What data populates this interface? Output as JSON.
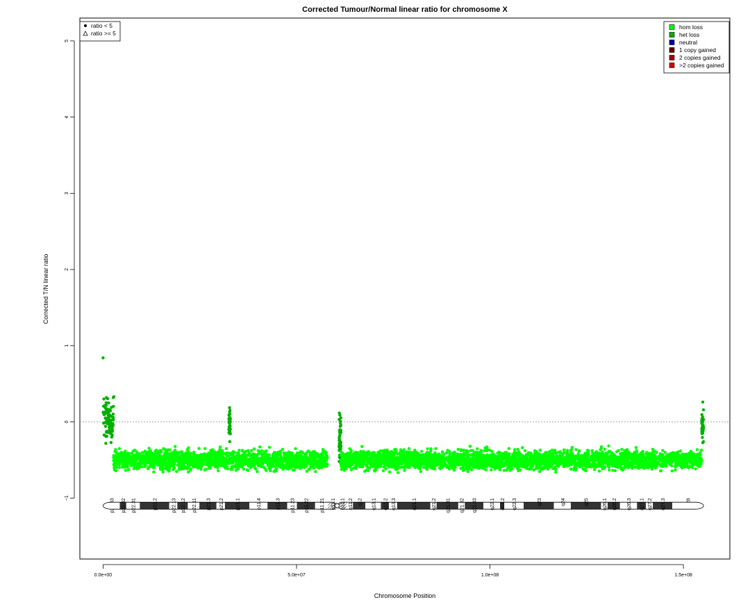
{
  "chart_data": {
    "type": "scatter",
    "title": "Corrected Tumour/Normal linear ratio for chromosome  X",
    "xlabel": "Chromosome Position",
    "ylabel": "Corrected T/N linear ratio",
    "xlim": [
      -6000000,
      162000000
    ],
    "ylim": [
      -1.8,
      5.3
    ],
    "x_ticks": [
      0,
      50000000,
      100000000,
      150000000
    ],
    "x_tick_labels": [
      "0.0e+00",
      "5.0e+07",
      "1.0e+08",
      "1.5e+08"
    ],
    "y_ticks": [
      -1,
      0,
      1,
      2,
      3,
      4,
      5
    ],
    "y_tick_labels": [
      "−1",
      "0",
      "1",
      "2",
      "3",
      "4",
      "5"
    ],
    "reference_line": 0,
    "point_legend": [
      {
        "label": "ratio < 5",
        "symbol": "filled-circle"
      },
      {
        "label": "ratio >= 5",
        "symbol": "open-triangle"
      }
    ],
    "legend": [
      {
        "label": "hom loss",
        "color": "#00ff00"
      },
      {
        "label": "het loss",
        "color": "#00b000"
      },
      {
        "label": "neutral",
        "color": "#0000aa"
      },
      {
        "label": "1 copy gained",
        "color": "#660000"
      },
      {
        "label": "2 copies gained",
        "color": "#a00000"
      },
      {
        "label": ">2 copies gained",
        "color": "#e00000"
      }
    ],
    "series": [
      {
        "name": "het loss",
        "color": "#00b000",
        "segments": [
          {
            "x_start": 0,
            "x_end": 2700000,
            "y_mean": 0.02,
            "y_spread": 0.13
          },
          {
            "x_start": 32500000,
            "x_end": 32900000,
            "y_mean": -0.05,
            "y_spread": 0.1
          },
          {
            "x_start": 61000000,
            "x_end": 61500000,
            "y_mean": -0.2,
            "y_spread": 0.15
          },
          {
            "x_start": 154700000,
            "x_end": 155200000,
            "y_mean": -0.05,
            "y_spread": 0.1
          }
        ],
        "outliers": [
          [
            0,
            0.84
          ],
          [
            200000,
            0.3
          ],
          [
            2800000,
            0.33
          ],
          [
            32800000,
            0.15
          ],
          [
            61200000,
            0.09
          ],
          [
            155000000,
            0.26
          ]
        ]
      },
      {
        "name": "hom loss",
        "color": "#00ff00",
        "segments": [
          {
            "x_start": 2700000,
            "x_end": 58000000,
            "y_mean": -0.5,
            "y_spread": 0.06
          },
          {
            "x_start": 61500000,
            "x_end": 154700000,
            "y_mean": -0.5,
            "y_spread": 0.06
          }
        ]
      }
    ],
    "ideogram": {
      "y": -1.1,
      "centromere": 60500000,
      "length": 155200000,
      "bands": [
        {
          "name": "p22.33",
          "start": 0,
          "end": 4300000,
          "stain": "gneg"
        },
        {
          "name": "p22.32",
          "start": 4300000,
          "end": 6000000,
          "stain": "gpos"
        },
        {
          "name": "p22.31",
          "start": 6000000,
          "end": 9500000,
          "stain": "gneg"
        },
        {
          "name": "p22.2",
          "start": 9500000,
          "end": 17100000,
          "stain": "gpos"
        },
        {
          "name": "p22.13",
          "start": 17100000,
          "end": 19200000,
          "stain": "gneg"
        },
        {
          "name": "p22.12",
          "start": 19200000,
          "end": 21900000,
          "stain": "gpos"
        },
        {
          "name": "p22.11",
          "start": 21900000,
          "end": 24900000,
          "stain": "gneg"
        },
        {
          "name": "p21.3",
          "start": 24900000,
          "end": 29300000,
          "stain": "gpos"
        },
        {
          "name": "p21.2",
          "start": 29300000,
          "end": 31500000,
          "stain": "gneg"
        },
        {
          "name": "p21.1",
          "start": 31500000,
          "end": 37800000,
          "stain": "gpos"
        },
        {
          "name": "p11.4",
          "start": 37800000,
          "end": 42500000,
          "stain": "gneg"
        },
        {
          "name": "p11.3",
          "start": 42500000,
          "end": 47600000,
          "stain": "gpos"
        },
        {
          "name": "p11.23",
          "start": 47600000,
          "end": 50100000,
          "stain": "gneg"
        },
        {
          "name": "p11.22",
          "start": 50100000,
          "end": 54800000,
          "stain": "gpos"
        },
        {
          "name": "p11.21",
          "start": 54800000,
          "end": 58100000,
          "stain": "gneg"
        },
        {
          "name": "p11.1",
          "start": 58100000,
          "end": 60500000,
          "stain": "acen"
        },
        {
          "name": "q11.1",
          "start": 60500000,
          "end": 63000000,
          "stain": "acen"
        },
        {
          "name": "q11.2",
          "start": 63000000,
          "end": 64600000,
          "stain": "gneg"
        },
        {
          "name": "q12",
          "start": 64600000,
          "end": 67800000,
          "stain": "gpos"
        },
        {
          "name": "q13.1",
          "start": 67800000,
          "end": 71800000,
          "stain": "gneg"
        },
        {
          "name": "q13.2",
          "start": 71800000,
          "end": 73900000,
          "stain": "gpos"
        },
        {
          "name": "q13.3",
          "start": 73900000,
          "end": 76000000,
          "stain": "gneg"
        },
        {
          "name": "q21.1",
          "start": 76000000,
          "end": 84600000,
          "stain": "gpos"
        },
        {
          "name": "q21.2",
          "start": 84600000,
          "end": 86200000,
          "stain": "gneg"
        },
        {
          "name": "q21.31",
          "start": 86200000,
          "end": 91800000,
          "stain": "gpos"
        },
        {
          "name": "q21.32",
          "start": 91800000,
          "end": 93500000,
          "stain": "gneg"
        },
        {
          "name": "q21.33",
          "start": 93500000,
          "end": 98300000,
          "stain": "gpos"
        },
        {
          "name": "q22.1",
          "start": 98300000,
          "end": 102600000,
          "stain": "gneg"
        },
        {
          "name": "q22.2",
          "start": 102600000,
          "end": 103700000,
          "stain": "gpos"
        },
        {
          "name": "q22.3",
          "start": 103700000,
          "end": 108700000,
          "stain": "gneg"
        },
        {
          "name": "q23",
          "start": 108700000,
          "end": 116500000,
          "stain": "gpos"
        },
        {
          "name": "q24",
          "start": 116500000,
          "end": 120900000,
          "stain": "gneg"
        },
        {
          "name": "q25",
          "start": 120900000,
          "end": 128700000,
          "stain": "gpos"
        },
        {
          "name": "q26.1",
          "start": 128700000,
          "end": 130400000,
          "stain": "gneg"
        },
        {
          "name": "q26.2",
          "start": 130400000,
          "end": 133600000,
          "stain": "gpos"
        },
        {
          "name": "q26.3",
          "start": 133600000,
          "end": 138000000,
          "stain": "gneg"
        },
        {
          "name": "q27.1",
          "start": 138000000,
          "end": 140300000,
          "stain": "gpos"
        },
        {
          "name": "q27.2",
          "start": 140300000,
          "end": 142100000,
          "stain": "gneg"
        },
        {
          "name": "q27.3",
          "start": 142100000,
          "end": 147100000,
          "stain": "gpos"
        },
        {
          "name": "q28",
          "start": 147100000,
          "end": 155200000,
          "stain": "gneg"
        }
      ]
    }
  }
}
